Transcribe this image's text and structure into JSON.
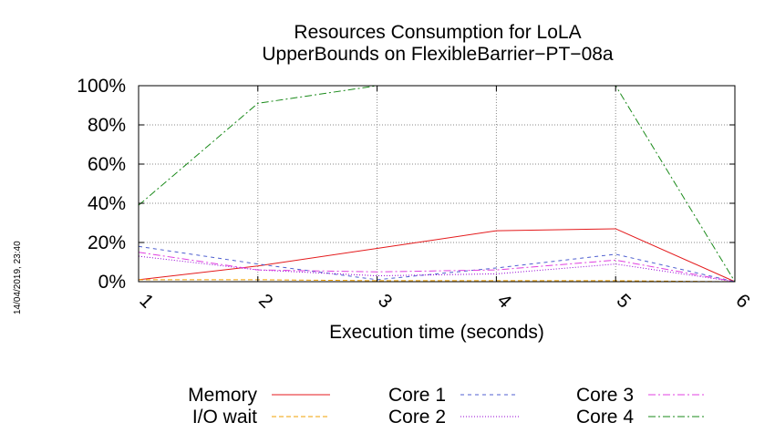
{
  "timestamp": "14/04/2019, 23:40",
  "chart_data": {
    "type": "line",
    "title": [
      "Resources Consumption for LoLA",
      "UpperBounds on FlexibleBarrier−PT−08a"
    ],
    "xlabel": "Execution time (seconds)",
    "ylabel": "",
    "x": [
      1,
      2,
      3,
      4,
      5,
      6
    ],
    "xlim": [
      1,
      6
    ],
    "ylim": [
      0,
      100
    ],
    "x_ticks": [
      "1",
      "2",
      "3",
      "4",
      "5",
      "6"
    ],
    "y_ticks": [
      {
        "value": 0,
        "label": "0%"
      },
      {
        "value": 20,
        "label": "20%"
      },
      {
        "value": 40,
        "label": "40%"
      },
      {
        "value": 60,
        "label": "60%"
      },
      {
        "value": 80,
        "label": "80%"
      },
      {
        "value": 100,
        "label": "100%"
      }
    ],
    "grid": true,
    "legend_position": "bottom",
    "series": [
      {
        "name": "Memory",
        "color": "#e41a1c",
        "dash": "",
        "values": [
          1,
          8,
          17,
          26,
          27,
          0
        ]
      },
      {
        "name": "I/O wait",
        "color": "#f0a000",
        "dash": "5,3",
        "values": [
          1,
          1,
          0.5,
          0.5,
          0.5,
          0
        ]
      },
      {
        "name": "Core 1",
        "color": "#4f5fd0",
        "dash": "4,4",
        "values": [
          18,
          9,
          1,
          7,
          14,
          0
        ]
      },
      {
        "name": "Core 2",
        "color": "#9400d3",
        "dash": "1,2",
        "values": [
          13,
          6,
          3,
          4,
          9,
          0
        ]
      },
      {
        "name": "Core 3",
        "color": "#e040e0",
        "dash": "8,3,2,3",
        "values": [
          15,
          6,
          5,
          6,
          11,
          0
        ]
      },
      {
        "name": "Core 4",
        "color": "#1a8a1a",
        "dash": "8,3,2,3",
        "values": [
          39,
          91,
          100,
          100,
          100,
          0
        ]
      }
    ]
  }
}
